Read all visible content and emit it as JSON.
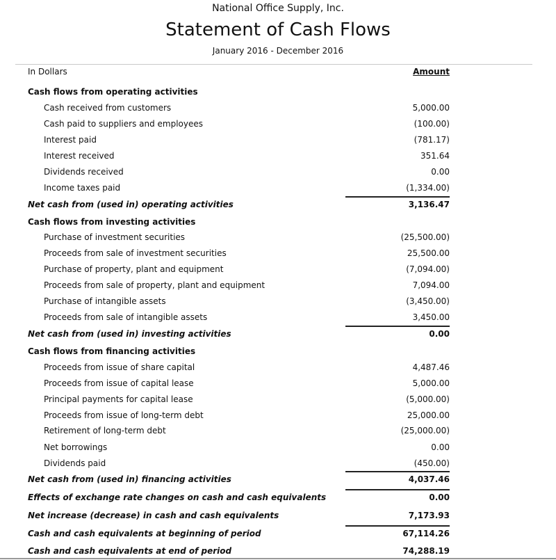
{
  "header": {
    "company": "National Office Supply, Inc.",
    "title": "Statement of Cash Flows",
    "period": "January 2016 - December 2016"
  },
  "columns": {
    "label": "In Dollars",
    "amount": "Amount"
  },
  "rows": [
    {
      "type": "heading",
      "label": "Cash flows from operating activities",
      "amount": ""
    },
    {
      "type": "item",
      "label": "Cash received from customers",
      "amount": "5,000.00"
    },
    {
      "type": "item",
      "label": "Cash paid to suppliers and employees",
      "amount": "(100.00)"
    },
    {
      "type": "item",
      "label": "Interest paid",
      "amount": "(781.17)"
    },
    {
      "type": "item",
      "label": "Interest received",
      "amount": "351.64"
    },
    {
      "type": "item",
      "label": "Dividends received",
      "amount": "0.00"
    },
    {
      "type": "item",
      "label": "Income taxes paid",
      "amount": "(1,334.00)"
    },
    {
      "type": "total",
      "label": "Net cash from (used in) operating activities",
      "amount": "3,136.47",
      "rule": true
    },
    {
      "type": "heading",
      "label": "Cash flows from investing activities",
      "amount": ""
    },
    {
      "type": "item",
      "label": "Purchase of investment securities",
      "amount": "(25,500.00)"
    },
    {
      "type": "item",
      "label": "Proceeds from sale of investment securities",
      "amount": "25,500.00"
    },
    {
      "type": "item",
      "label": "Purchase of property, plant and equipment",
      "amount": "(7,094.00)"
    },
    {
      "type": "item",
      "label": "Proceeds from sale of property, plant and equipment",
      "amount": "7,094.00"
    },
    {
      "type": "item",
      "label": "Purchase of intangible assets",
      "amount": "(3,450.00)"
    },
    {
      "type": "item",
      "label": "Proceeds from sale of intangible assets",
      "amount": "3,450.00"
    },
    {
      "type": "total",
      "label": "Net cash from (used in) investing activities",
      "amount": "0.00",
      "rule": true
    },
    {
      "type": "heading",
      "label": "Cash flows from financing activities",
      "amount": ""
    },
    {
      "type": "item",
      "label": "Proceeds from issue of share capital",
      "amount": "4,487.46"
    },
    {
      "type": "item",
      "label": "Proceeds from issue of capital lease",
      "amount": "5,000.00"
    },
    {
      "type": "item",
      "label": "Principal payments for capital lease",
      "amount": "(5,000.00)"
    },
    {
      "type": "item",
      "label": "Proceeds from issue of long-term debt",
      "amount": "25,000.00"
    },
    {
      "type": "item",
      "label": "Retirement of long-term debt",
      "amount": "(25,000.00)"
    },
    {
      "type": "item",
      "label": "Net borrowings",
      "amount": "0.00"
    },
    {
      "type": "item",
      "label": "Dividends paid",
      "amount": "(450.00)"
    },
    {
      "type": "total",
      "label": "Net cash from (used in) financing activities",
      "amount": "4,037.46",
      "rule": true
    },
    {
      "type": "total",
      "label": "Effects of exchange rate changes on cash and cash equivalents",
      "amount": "0.00",
      "rule": true
    },
    {
      "type": "total",
      "label": "Net increase (decrease) in cash and cash equivalents",
      "amount": "7,173.93"
    },
    {
      "type": "total",
      "label": "Cash and cash equivalents at beginning of period",
      "amount": "67,114.26",
      "rule": true
    },
    {
      "type": "total",
      "label": "Cash and cash equivalents at end of period",
      "amount": "74,288.19"
    }
  ]
}
